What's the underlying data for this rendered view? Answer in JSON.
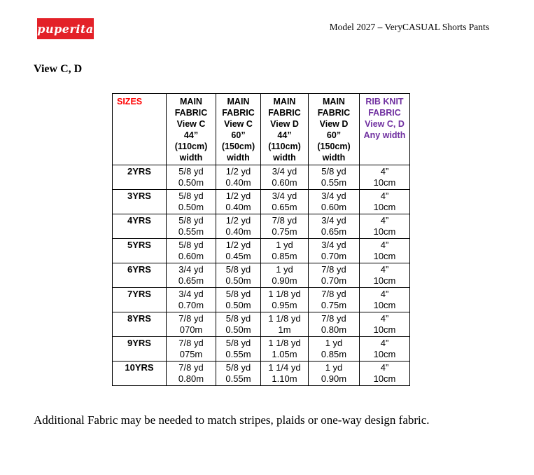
{
  "page": {
    "logo_text": "puperita",
    "doc_title": "Model 2027 – VeryCASUAL Shorts Pants",
    "section_title": "View C, D",
    "footnote": "Additional Fabric may be needed to match stripes, plaids or one-way design fabric."
  },
  "colors": {
    "logo_background": "#e32128",
    "logo_text": "#ffffff",
    "sizes_header": "#ff0000",
    "rib_knit_header": "#7030a0",
    "table_text": "#000000",
    "table_border": "#000000"
  },
  "table": {
    "header": [
      {
        "id": "sizes",
        "lines": [
          "SIZES"
        ],
        "color": "#ff0000"
      },
      {
        "id": "main-fabric-view-c-44",
        "lines": [
          "MAIN",
          "FABRIC",
          "View C",
          "44”",
          "(110cm)",
          "width"
        ],
        "color": "#000000"
      },
      {
        "id": "main-fabric-view-c-60",
        "lines": [
          "MAIN",
          "FABRIC",
          "View C",
          "60”",
          "(150cm)",
          "width"
        ],
        "color": "#000000"
      },
      {
        "id": "main-fabric-view-d-44",
        "lines": [
          "MAIN",
          "FABRIC",
          "View D",
          "44”",
          "(110cm)",
          "width"
        ],
        "color": "#000000"
      },
      {
        "id": "main-fabric-view-d-60",
        "lines": [
          "MAIN",
          "FABRIC",
          "View D",
          "60”",
          "(150cm)",
          "width"
        ],
        "color": "#000000"
      },
      {
        "id": "rib-knit-fabric",
        "lines": [
          "RIB KNIT",
          "FABRIC",
          "View C, D",
          "Any width"
        ],
        "color": "#7030a0"
      }
    ],
    "rows": [
      {
        "size": "2YRS",
        "cells": [
          [
            "5/8 yd",
            "0.50m"
          ],
          [
            "1/2 yd",
            "0.40m"
          ],
          [
            "3/4 yd",
            "0.60m"
          ],
          [
            "5/8 yd",
            "0.55m"
          ],
          [
            "4”",
            "10cm"
          ]
        ]
      },
      {
        "size": "3YRS",
        "cells": [
          [
            "5/8 yd",
            "0.50m"
          ],
          [
            "1/2 yd",
            "0.40m"
          ],
          [
            "3/4 yd",
            "0.65m"
          ],
          [
            "3/4 yd",
            "0.60m"
          ],
          [
            "4”",
            "10cm"
          ]
        ]
      },
      {
        "size": "4YRS",
        "cells": [
          [
            "5/8 yd",
            "0.55m"
          ],
          [
            "1/2 yd",
            "0.40m"
          ],
          [
            "7/8 yd",
            "0.75m"
          ],
          [
            "3/4 yd",
            "0.65m"
          ],
          [
            "4”",
            "10cm"
          ]
        ]
      },
      {
        "size": "5YRS",
        "cells": [
          [
            "5/8 yd",
            "0.60m"
          ],
          [
            "1/2 yd",
            "0.45m"
          ],
          [
            "1 yd",
            "0.85m"
          ],
          [
            "3/4 yd",
            "0.70m"
          ],
          [
            "4”",
            "10cm"
          ]
        ]
      },
      {
        "size": "6YRS",
        "cells": [
          [
            "3/4 yd",
            "0.65m"
          ],
          [
            "5/8 yd",
            "0.50m"
          ],
          [
            "1 yd",
            "0.90m"
          ],
          [
            "7/8 yd",
            "0.70m"
          ],
          [
            "4”",
            "10cm"
          ]
        ]
      },
      {
        "size": "7YRS",
        "cells": [
          [
            "3/4 yd",
            "0.70m"
          ],
          [
            "5/8 yd",
            "0.50m"
          ],
          [
            "1 1/8 yd",
            "0.95m"
          ],
          [
            "7/8 yd",
            "0.75m"
          ],
          [
            "4”",
            "10cm"
          ]
        ]
      },
      {
        "size": "8YRS",
        "cells": [
          [
            "7/8 yd",
            "070m"
          ],
          [
            "5/8 yd",
            "0.50m"
          ],
          [
            "1 1/8 yd",
            "1m"
          ],
          [
            "7/8 yd",
            "0.80m"
          ],
          [
            "4”",
            "10cm"
          ]
        ]
      },
      {
        "size": "9YRS",
        "cells": [
          [
            "7/8 yd",
            "075m"
          ],
          [
            "5/8 yd",
            "0.55m"
          ],
          [
            "1 1/8 yd",
            "1.05m"
          ],
          [
            "1 yd",
            "0.85m"
          ],
          [
            "4”",
            "10cm"
          ]
        ]
      },
      {
        "size": "10YRS",
        "cells": [
          [
            "7/8 yd",
            "0.80m"
          ],
          [
            "5/8 yd",
            "0.55m"
          ],
          [
            "1 1/4 yd",
            "1.10m"
          ],
          [
            "1 yd",
            "0.90m"
          ],
          [
            "4”",
            "10cm"
          ]
        ]
      }
    ]
  }
}
